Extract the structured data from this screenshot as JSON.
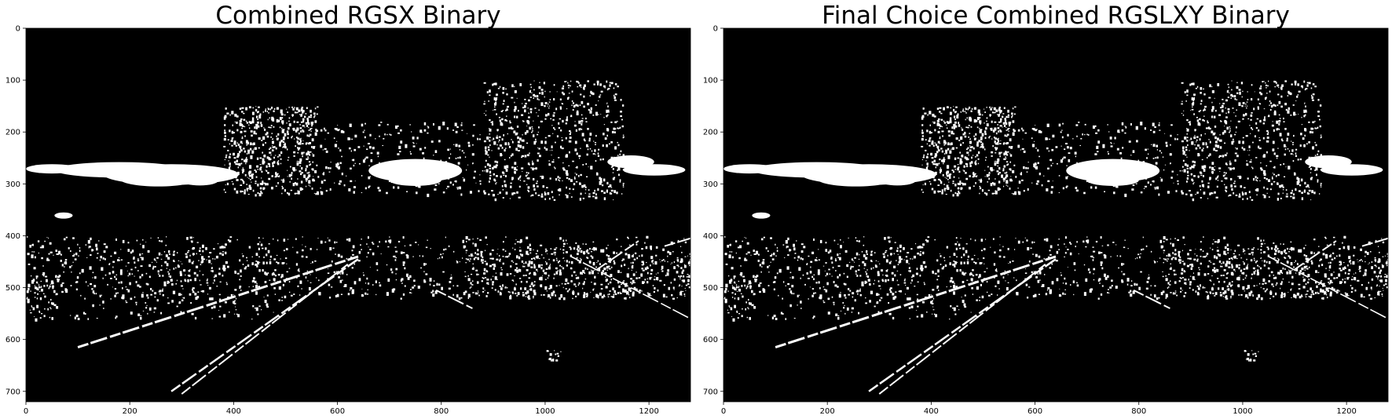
{
  "figure": {
    "panels": [
      {
        "title": "Combined RGSX Binary",
        "x_ticks": [
          "0",
          "200",
          "400",
          "600",
          "800",
          "1000",
          "1200"
        ],
        "y_ticks": [
          "0",
          "100",
          "200",
          "300",
          "400",
          "500",
          "600",
          "700"
        ]
      },
      {
        "title": "Final Choice Combined RGSLXY Binary",
        "x_ticks": [
          "0",
          "200",
          "400",
          "600",
          "800",
          "1000",
          "1200"
        ],
        "y_ticks": [
          "0",
          "100",
          "200",
          "300",
          "400",
          "500",
          "600",
          "700"
        ]
      }
    ],
    "colors": {
      "background": "#ffffff",
      "image_background": "#000000",
      "foreground_pixels": "#ffffff",
      "text": "#000000"
    }
  },
  "chart_data": [
    {
      "type": "heatmap",
      "title": "Combined RGSX Binary",
      "xlabel": "",
      "ylabel": "",
      "xlim": [
        0,
        1280
      ],
      "ylim": [
        720,
        0
      ],
      "xticks": [
        0,
        200,
        400,
        600,
        800,
        1000,
        1200
      ],
      "yticks": [
        0,
        100,
        200,
        300,
        400,
        500,
        600,
        700
      ],
      "grid": false,
      "values": "binary mask image (black background with white pixels)"
    },
    {
      "type": "heatmap",
      "title": "Final Choice Combined RGSLXY Binary",
      "xlabel": "",
      "ylabel": "",
      "xlim": [
        0,
        1280
      ],
      "ylim": [
        720,
        0
      ],
      "xticks": [
        0,
        200,
        400,
        600,
        800,
        1000,
        1200
      ],
      "yticks": [
        0,
        100,
        200,
        300,
        400,
        500,
        600,
        700
      ],
      "grid": false,
      "values": "binary mask image (black background with white pixels)"
    }
  ]
}
